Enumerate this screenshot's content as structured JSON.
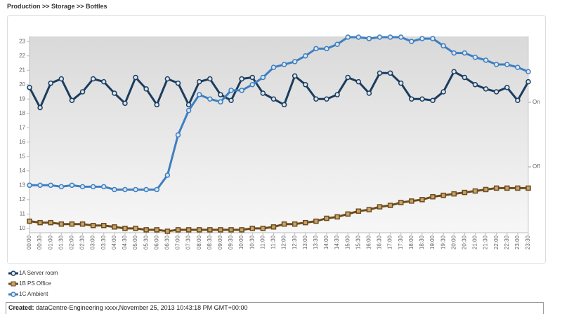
{
  "breadcrumb": "Production >> Storage >> Bottles",
  "footer": {
    "label": "Created:",
    "text": "dataCentre-Engineering xxxx,November 25, 2013 10:43:18 PM GMT+00:00"
  },
  "chart_data": {
    "type": "line",
    "categories": [
      "00:00",
      "00:30",
      "01:00",
      "01:30",
      "02:00",
      "02:30",
      "03:00",
      "03:30",
      "04:00",
      "04:30",
      "05:00",
      "05:30",
      "06:00",
      "06:30",
      "07:00",
      "07:30",
      "08:00",
      "08:30",
      "09:00",
      "09:30",
      "10:00",
      "10:30",
      "11:00",
      "11:30",
      "12:00",
      "12:30",
      "13:00",
      "13:30",
      "14:00",
      "14:30",
      "15:00",
      "15:30",
      "16:00",
      "16:30",
      "17:00",
      "17:30",
      "18:00",
      "18:30",
      "19:00",
      "19:30",
      "20:00",
      "20:30",
      "21:00",
      "21:30",
      "22:00",
      "22:30",
      "23:00",
      "23:30"
    ],
    "series": [
      {
        "name": "1A Server room",
        "color": "#1b3d5e",
        "marker": "circle",
        "values": [
          19.8,
          18.4,
          20.1,
          20.4,
          18.9,
          19.5,
          20.4,
          20.2,
          19.4,
          18.7,
          20.5,
          19.7,
          18.6,
          20.4,
          20.1,
          18.6,
          20.2,
          20.4,
          19.3,
          18.9,
          20.4,
          20.5,
          19.4,
          19.0,
          18.6,
          20.6,
          20.0,
          19.0,
          19.0,
          19.3,
          20.5,
          20.2,
          19.4,
          20.8,
          20.8,
          20.1,
          19.0,
          19.0,
          18.9,
          19.5,
          20.9,
          20.5,
          20.0,
          19.7,
          19.5,
          19.8,
          18.9,
          20.2
        ]
      },
      {
        "name": "1B PS Office",
        "color": "#6b4a1c",
        "marker": "square",
        "values": [
          10.5,
          10.4,
          10.4,
          10.3,
          10.3,
          10.3,
          10.2,
          10.2,
          10.1,
          10.0,
          10.0,
          9.9,
          9.9,
          9.8,
          9.9,
          9.9,
          9.9,
          9.9,
          9.9,
          9.9,
          9.9,
          10.0,
          10.0,
          10.1,
          10.3,
          10.3,
          10.4,
          10.5,
          10.7,
          10.8,
          11.0,
          11.2,
          11.3,
          11.5,
          11.6,
          11.8,
          11.9,
          12.0,
          12.2,
          12.3,
          12.4,
          12.5,
          12.6,
          12.7,
          12.8,
          12.8,
          12.8,
          12.8
        ]
      },
      {
        "name": "1C Ambient",
        "color": "#3d7fc1",
        "marker": "circle",
        "values": [
          13.0,
          13.0,
          13.0,
          12.9,
          13.0,
          12.9,
          12.9,
          12.9,
          12.7,
          12.7,
          12.7,
          12.7,
          12.7,
          13.7,
          16.5,
          18.2,
          19.3,
          19.0,
          18.8,
          19.6,
          19.6,
          20.0,
          20.5,
          21.2,
          21.4,
          21.6,
          22.0,
          22.5,
          22.5,
          22.8,
          23.3,
          23.3,
          23.2,
          23.3,
          23.3,
          23.3,
          23.0,
          23.2,
          23.2,
          22.7,
          22.2,
          22.2,
          21.9,
          21.7,
          21.4,
          21.4,
          21.2,
          20.9
        ]
      }
    ],
    "ylim": [
      9.7,
      23.35
    ],
    "yticks": [
      10,
      11,
      12,
      13,
      14,
      15,
      16,
      17,
      18,
      19,
      20,
      21,
      22,
      23
    ],
    "y2lim": [
      -1.02,
      2.02
    ],
    "y2ticks": [
      {
        "value": 1,
        "label": "On"
      },
      {
        "value": 0,
        "label": "Off"
      }
    ],
    "grid": false
  }
}
